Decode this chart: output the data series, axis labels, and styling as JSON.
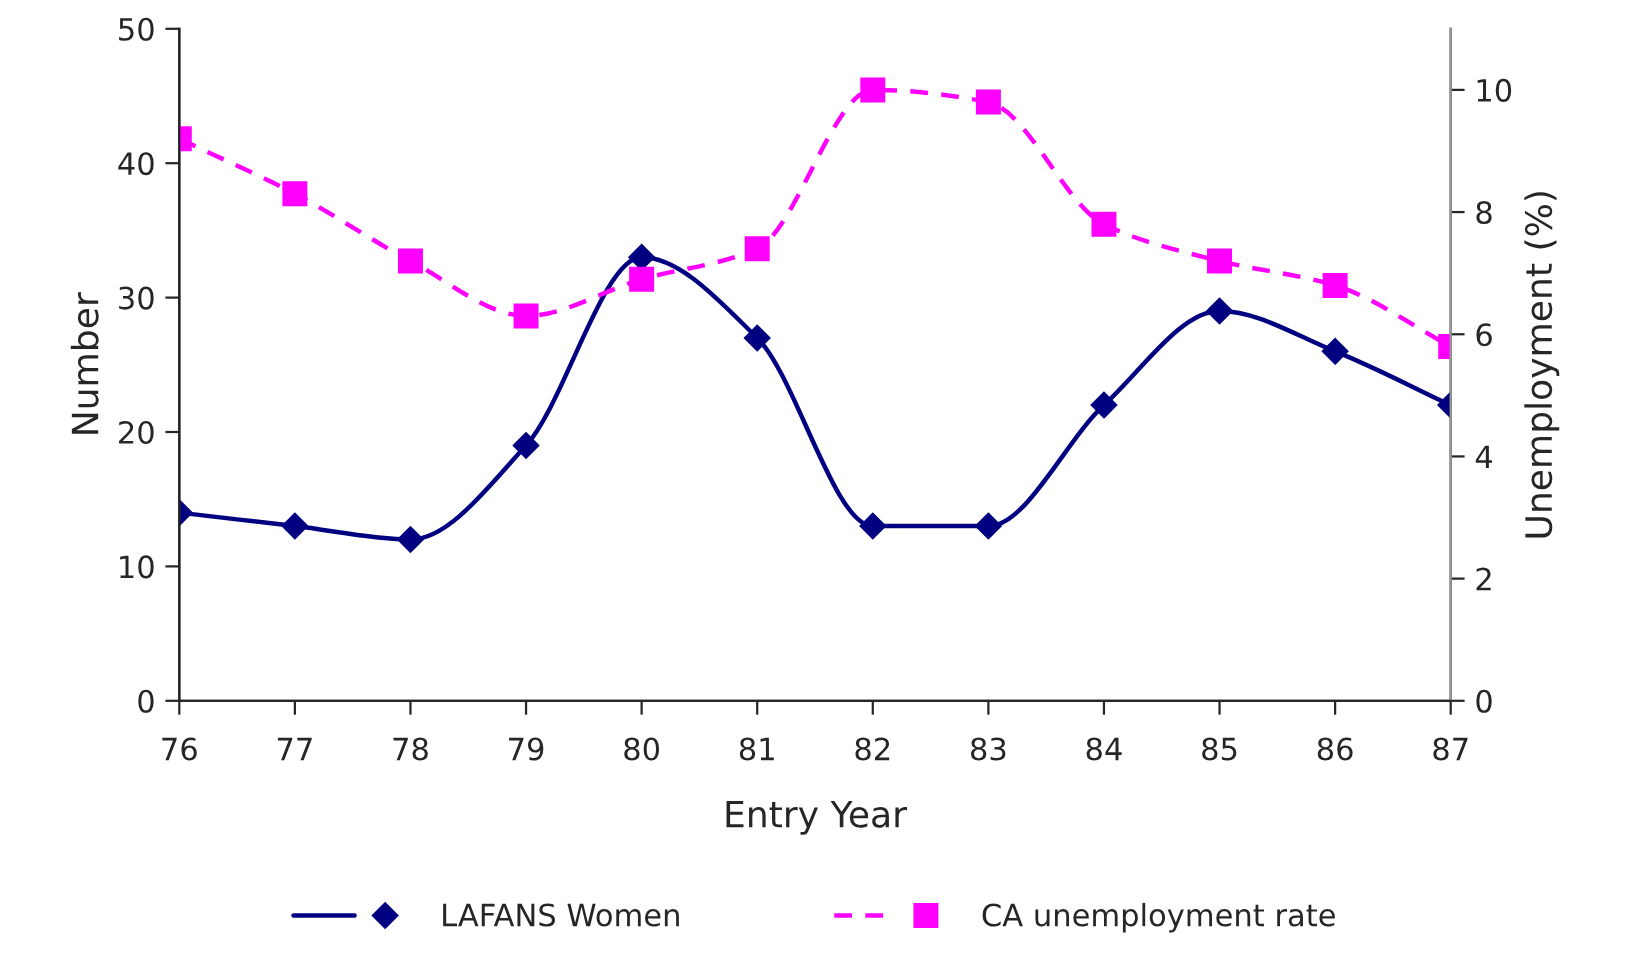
{
  "chart_data": {
    "type": "line",
    "xlabel": "Entry Year",
    "ylabel": "Number",
    "y2label": "Unemployment (%)",
    "x": [
      76,
      77,
      78,
      79,
      80,
      81,
      82,
      83,
      84,
      85,
      86,
      87
    ],
    "xlim": [
      76,
      87
    ],
    "xticks": [
      76,
      77,
      78,
      79,
      80,
      81,
      82,
      83,
      84,
      85,
      86,
      87
    ],
    "ylim": [
      0,
      50
    ],
    "yticks": [
      0,
      10,
      20,
      30,
      40,
      50
    ],
    "y2lim": [
      0,
      11
    ],
    "y2ticks": [
      0,
      2,
      4,
      6,
      8,
      10
    ],
    "grid": false,
    "legend": "bottom",
    "series": [
      {
        "name": "LAFANS Women",
        "color": "#000080",
        "marker": "diamond",
        "line_style": "solid",
        "values": [
          14,
          13,
          12,
          19,
          33,
          27,
          13,
          13,
          22,
          29,
          26,
          22
        ]
      },
      {
        "name": "CA unemployment rate",
        "color": "#ff00ff",
        "marker": "square",
        "line_style": "dashed",
        "axis": "y2",
        "values": [
          9.2,
          8.3,
          7.2,
          6.3,
          6.9,
          7.4,
          10.0,
          9.8,
          7.8,
          7.2,
          6.8,
          5.8
        ]
      }
    ]
  }
}
